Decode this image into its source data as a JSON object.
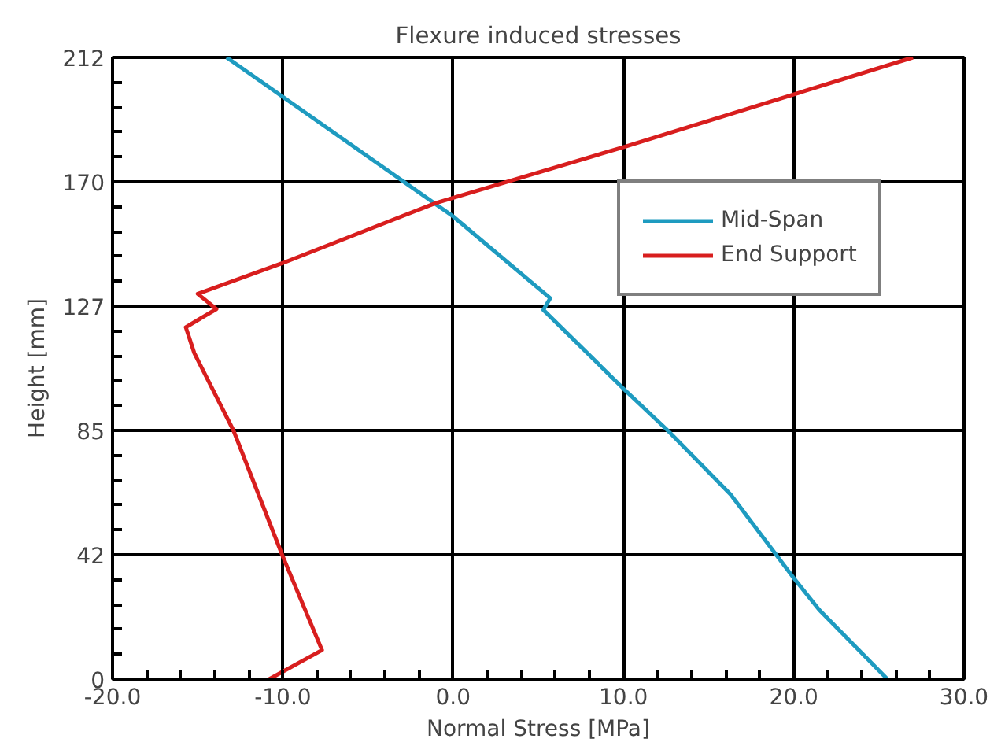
{
  "chart_data": {
    "type": "line",
    "title": "Flexure induced stresses",
    "xlabel": "Normal Stress [MPa]",
    "ylabel": "Height [mm]",
    "xlim": [
      -20,
      30
    ],
    "xticks": [
      {
        "value": -20,
        "label": "-20.0"
      },
      {
        "value": -10,
        "label": "-10.0"
      },
      {
        "value": 0,
        "label": "0.0"
      },
      {
        "value": 10,
        "label": "10.0"
      },
      {
        "value": 20,
        "label": "20.0"
      },
      {
        "value": 30,
        "label": "30.0"
      }
    ],
    "ylim": [
      0,
      212
    ],
    "yticks": [
      0,
      {
        "value": 42.4,
        "label": "42"
      },
      {
        "value": 84.8,
        "label": "85"
      },
      {
        "value": 127.2,
        "label": "127"
      },
      {
        "value": 169.6,
        "label": "170"
      },
      212
    ],
    "grid": true,
    "legend": "top right",
    "line_style": "solid",
    "marker": "none",
    "series": [
      {
        "name": "Mid-Span",
        "color": "#1e9bc0",
        "x": [
          -13.3,
          0.0,
          5.7,
          5.3,
          10.1,
          12.6,
          16.3,
          20.0,
          21.5,
          25.5
        ],
        "values": [
          212,
          157.8,
          129.9,
          125.9,
          98.5,
          84.8,
          62.9,
          34.5,
          23.6,
          0
        ]
      },
      {
        "name": "End Support",
        "color": "#d81e1e",
        "x": [
          27.0,
          10.1,
          -1.0,
          -10.0,
          -15.0,
          -13.9,
          -15.7,
          -15.2,
          -12.9,
          -10.0,
          -7.7,
          -10.8
        ],
        "values": [
          212,
          181.6,
          162.4,
          141.9,
          131.4,
          126.2,
          120.0,
          111.2,
          84.8,
          41.8,
          9.9,
          0
        ]
      }
    ]
  }
}
